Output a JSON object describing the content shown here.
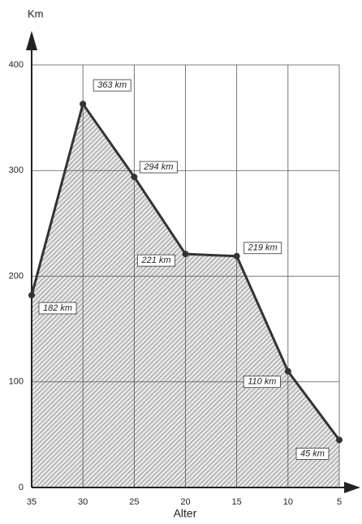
{
  "chart_data": {
    "type": "area",
    "y_label": "Km",
    "x_label": "Alter",
    "x": [
      35,
      30,
      25,
      20,
      15,
      10,
      5
    ],
    "values": [
      182,
      363,
      294,
      221,
      219,
      110,
      45
    ],
    "value_labels": [
      "182 km",
      "363 km",
      "294 km",
      "221 km",
      "219 km",
      "110 km",
      "45 km"
    ],
    "xlim": [
      35,
      5
    ],
    "xticks": [
      35,
      30,
      25,
      20,
      15,
      10,
      5
    ],
    "ylim": [
      0,
      400
    ],
    "yticks": [
      0,
      100,
      200,
      300,
      400
    ],
    "grid": true,
    "color": "#333333"
  }
}
